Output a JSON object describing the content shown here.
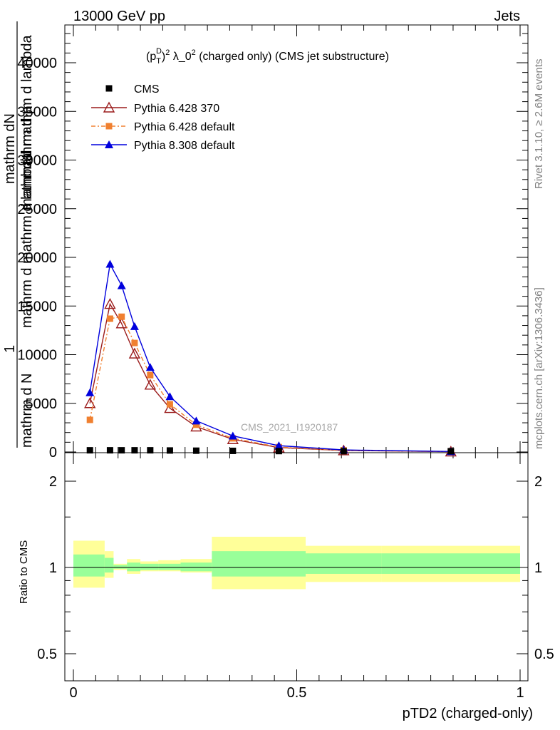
{
  "header": {
    "left": "13000 GeV pp",
    "right": "Jets"
  },
  "side": {
    "rivet": "Rivet 3.1.10, ≥ 2.6M events",
    "mcplots": "mcplots.cern.ch [arXiv:1306.3436]"
  },
  "chart_data": {
    "type": "line",
    "title_main": "(pTD)2 λ_02 (charged only) (CMS jet substructure)",
    "title_parts": {
      "open": "(p",
      "sub": "T",
      "sup": "D",
      "close": ")",
      "sq": "2",
      "lambda": " λ_0",
      "sq2": "2",
      "rest": " (charged only) (CMS jet substructure)"
    },
    "watermark": "CMS_2021_I1920187",
    "xlabel": "pTD2 (charged-only)",
    "ylabel_num": "mathrm dN",
    "ylabel_den_lines": [
      "mathrm d p",
      "mathrm d mathrm d lambda",
      "mathrm d N",
      "mathrm d mathrm d lambda",
      "mathrm d N",
      "1"
    ],
    "ylabel_text": "1 / mathrm d N  mathrm d N / mathrm d p mathrm d mathrm d lambda",
    "ratio_ylabel": "Ratio to CMS",
    "xlim": [
      0,
      1
    ],
    "ylim": [
      0,
      44000
    ],
    "x_ticks": [
      "0",
      "0.5",
      "1"
    ],
    "y_ticks": [
      "0",
      "5000",
      "10000",
      "15000",
      "20000",
      "25000",
      "30000",
      "35000",
      "40000"
    ],
    "ratio_ylim": [
      0.4,
      2.3
    ],
    "ratio_ticks": [
      "0.5",
      "1",
      "2"
    ],
    "series": [
      {
        "name": "CMS",
        "color": "#000000",
        "marker": "square",
        "x": [
          0.037,
          0.082,
          0.108,
          0.137,
          0.172,
          0.216,
          0.275,
          0.357,
          0.46,
          0.605,
          0.845
        ],
        "y": [
          100,
          100,
          100,
          100,
          100,
          80,
          60,
          40,
          20,
          10,
          5
        ]
      },
      {
        "name": "Pythia 6.428 370",
        "color": "#9b1c1c",
        "marker": "open-triangle",
        "x": [
          0.037,
          0.082,
          0.108,
          0.137,
          0.172,
          0.216,
          0.275,
          0.357,
          0.46,
          0.605,
          0.845
        ],
        "y": [
          5000,
          15200,
          13200,
          10100,
          6900,
          4500,
          2600,
          1300,
          450,
          150,
          30
        ]
      },
      {
        "name": "Pythia 6.428 default",
        "color": "#f08030",
        "marker": "square",
        "x": [
          0.037,
          0.082,
          0.108,
          0.137,
          0.172,
          0.216,
          0.275,
          0.357,
          0.46,
          0.605,
          0.845
        ],
        "y": [
          3300,
          13700,
          13900,
          11200,
          7900,
          4900,
          2800,
          1400,
          500,
          170,
          40
        ]
      },
      {
        "name": "Pythia 8.308 default",
        "color": "#0000dd",
        "marker": "triangle",
        "x": [
          0.037,
          0.082,
          0.108,
          0.137,
          0.172,
          0.216,
          0.275,
          0.357,
          0.46,
          0.605,
          0.845
        ],
        "y": [
          6100,
          19300,
          17100,
          12900,
          8700,
          5700,
          3200,
          1650,
          650,
          210,
          50
        ]
      }
    ],
    "ratio_bands": {
      "bins": [
        0.0,
        0.07,
        0.09,
        0.12,
        0.15,
        0.19,
        0.24,
        0.31,
        0.52,
        0.69,
        1.0
      ],
      "green": [
        [
          0.93,
          1.11
        ],
        [
          0.96,
          1.08
        ],
        [
          0.99,
          1.02
        ],
        [
          0.97,
          1.04
        ],
        [
          0.98,
          1.03
        ],
        [
          0.98,
          1.03
        ],
        [
          0.97,
          1.04
        ],
        [
          0.93,
          1.14
        ],
        [
          0.95,
          1.12
        ],
        [
          0.95,
          1.12
        ]
      ],
      "yellow": [
        [
          0.85,
          1.24
        ],
        [
          0.92,
          1.14
        ],
        [
          0.98,
          1.03
        ],
        [
          0.95,
          1.07
        ],
        [
          0.97,
          1.05
        ],
        [
          0.97,
          1.06
        ],
        [
          0.96,
          1.07
        ],
        [
          0.84,
          1.28
        ],
        [
          0.89,
          1.19
        ],
        [
          0.89,
          1.19
        ]
      ]
    }
  }
}
